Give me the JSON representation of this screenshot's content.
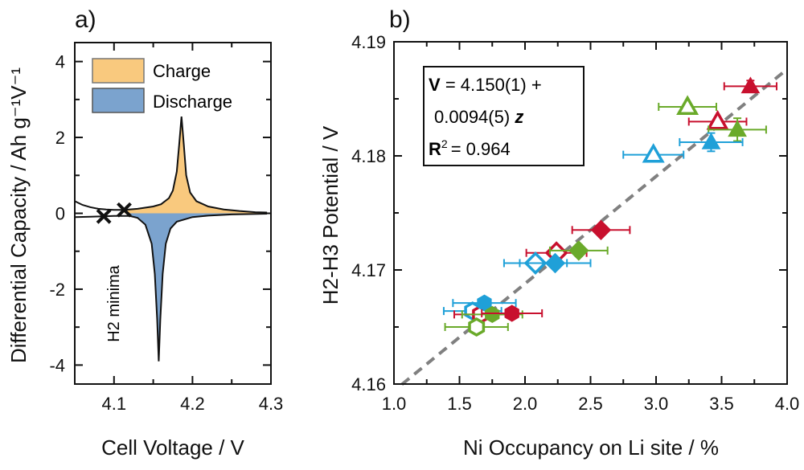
{
  "chart_data": [
    {
      "type": "area",
      "panel_label": "a)",
      "xlabel": "Cell Voltage / V",
      "ylabel": "Differential Capacity / Ah g⁻¹V⁻¹",
      "xlim": [
        4.05,
        4.3
      ],
      "ylim": [
        -4.5,
        4.5
      ],
      "xticks": [
        4.1,
        4.2,
        4.3
      ],
      "xtick_labels": [
        "4.1",
        "4.2",
        "4.3"
      ],
      "yticks": [
        4,
        2,
        0,
        -2,
        -4
      ],
      "ytick_labels": [
        "4",
        "2",
        "0",
        "-2",
        "-4"
      ],
      "legend_position": "top-left",
      "series": [
        {
          "name": "Charge",
          "color": "#F9C97E",
          "x": [
            4.05,
            4.06,
            4.07,
            4.08,
            4.09,
            4.1,
            4.113,
            4.13,
            4.15,
            4.16,
            4.17,
            4.175,
            4.18,
            4.183,
            4.186,
            4.189,
            4.192,
            4.197,
            4.205,
            4.22,
            4.24,
            4.26,
            4.28,
            4.295
          ],
          "y": [
            0.32,
            0.22,
            0.16,
            0.12,
            0.1,
            0.09,
            0.09,
            0.12,
            0.18,
            0.24,
            0.4,
            0.6,
            1.1,
            1.8,
            2.55,
            1.8,
            1.0,
            0.55,
            0.32,
            0.18,
            0.1,
            0.06,
            0.03,
            0.02
          ]
        },
        {
          "name": "Discharge",
          "color": "#7BA3CE",
          "x": [
            4.05,
            4.07,
            4.087,
            4.1,
            4.12,
            4.13,
            4.14,
            4.148,
            4.152,
            4.155,
            4.157,
            4.159,
            4.162,
            4.166,
            4.172,
            4.18,
            4.2,
            4.22,
            4.25,
            4.295
          ],
          "y": [
            -0.1,
            -0.09,
            -0.08,
            -0.07,
            -0.07,
            -0.12,
            -0.3,
            -0.8,
            -1.6,
            -2.8,
            -3.9,
            -2.8,
            -1.6,
            -0.8,
            -0.4,
            -0.22,
            -0.1,
            -0.06,
            -0.03,
            -0.01
          ]
        }
      ],
      "markers": [
        {
          "x": 4.087,
          "y": -0.08,
          "symbol": "x"
        },
        {
          "x": 4.113,
          "y": 0.09,
          "symbol": "x"
        }
      ],
      "annotation": "H2 minima"
    },
    {
      "type": "scatter",
      "panel_label": "b)",
      "xlabel": "Ni Occupancy on Li site / %",
      "ylabel": "H2-H3 Potential / V",
      "xlim": [
        1.0,
        4.0
      ],
      "ylim": [
        4.16,
        4.19
      ],
      "xticks": [
        1.0,
        1.5,
        2.0,
        2.5,
        3.0,
        3.5,
        4.0
      ],
      "xtick_labels": [
        "1.0",
        "1.5",
        "2.0",
        "2.5",
        "3.0",
        "3.5",
        "4.0"
      ],
      "yticks": [
        4.16,
        4.17,
        4.18,
        4.19
      ],
      "ytick_labels": [
        "4.16",
        "4.17",
        "4.18",
        "4.19"
      ],
      "colors": {
        "red": "#C8102E",
        "green": "#6AAA2A",
        "blue": "#1FA0D8"
      },
      "fit": {
        "equation_line1": "= 4.150(1) +",
        "equation_var": "V",
        "equation_line2": "0.0094(5)",
        "equation_z": "z",
        "r2_label": "R",
        "r2_sup": "2",
        "r2_value": "= 0.964",
        "intercept": 4.15,
        "slope": 0.0094,
        "x_range": [
          1.06,
          4.0
        ],
        "color": "#808080",
        "style": "dashed"
      },
      "points": [
        {
          "x": 3.72,
          "y": 4.1861,
          "xerr": 0.2,
          "yerr": 0.0005,
          "color": "red",
          "shape": "triangle",
          "filled": true
        },
        {
          "x": 3.24,
          "y": 4.1843,
          "xerr": 0.22,
          "yerr": 0,
          "color": "green",
          "shape": "triangle",
          "filled": false
        },
        {
          "x": 3.47,
          "y": 4.183,
          "xerr": 0.22,
          "yerr": 0,
          "color": "red",
          "shape": "triangle",
          "filled": false
        },
        {
          "x": 3.62,
          "y": 4.1823,
          "xerr": 0.22,
          "yerr": 0.001,
          "color": "green",
          "shape": "triangle",
          "filled": true
        },
        {
          "x": 3.42,
          "y": 4.1812,
          "xerr": 0.24,
          "yerr": 0.0008,
          "color": "blue",
          "shape": "triangle",
          "filled": true
        },
        {
          "x": 2.98,
          "y": 4.1801,
          "xerr": 0.23,
          "yerr": 0,
          "color": "blue",
          "shape": "triangle",
          "filled": false
        },
        {
          "x": 2.58,
          "y": 4.1735,
          "xerr": 0.22,
          "yerr": 0,
          "color": "red",
          "shape": "diamond",
          "filled": true
        },
        {
          "x": 2.24,
          "y": 4.1715,
          "xerr": 0.23,
          "yerr": 0,
          "color": "red",
          "shape": "diamond",
          "filled": false
        },
        {
          "x": 2.41,
          "y": 4.1717,
          "xerr": 0.22,
          "yerr": 0.0005,
          "color": "green",
          "shape": "diamond",
          "filled": true
        },
        {
          "x": 2.08,
          "y": 4.1706,
          "xerr": 0.24,
          "yerr": 0,
          "color": "blue",
          "shape": "diamond",
          "filled": false
        },
        {
          "x": 2.23,
          "y": 4.1706,
          "xerr": 0.27,
          "yerr": 0,
          "color": "blue",
          "shape": "diamond",
          "filled": true
        },
        {
          "x": 1.6,
          "y": 4.1664,
          "xerr": 0.22,
          "yerr": 0,
          "color": "blue",
          "shape": "hexagon",
          "filled": false
        },
        {
          "x": 1.66,
          "y": 4.1661,
          "xerr": 0.2,
          "yerr": 0,
          "color": "red",
          "shape": "hexagon",
          "filled": false
        },
        {
          "x": 1.63,
          "y": 4.165,
          "xerr": 0.24,
          "yerr": 0,
          "color": "green",
          "shape": "hexagon",
          "filled": false
        },
        {
          "x": 1.69,
          "y": 4.1671,
          "xerr": 0.24,
          "yerr": 0,
          "color": "blue",
          "shape": "hexagon",
          "filled": true
        },
        {
          "x": 1.75,
          "y": 4.1661,
          "xerr": 0.23,
          "yerr": 0,
          "color": "green",
          "shape": "hexagon",
          "filled": true
        },
        {
          "x": 1.9,
          "y": 4.1662,
          "xerr": 0.23,
          "yerr": 0,
          "color": "red",
          "shape": "hexagon",
          "filled": true
        }
      ]
    }
  ]
}
